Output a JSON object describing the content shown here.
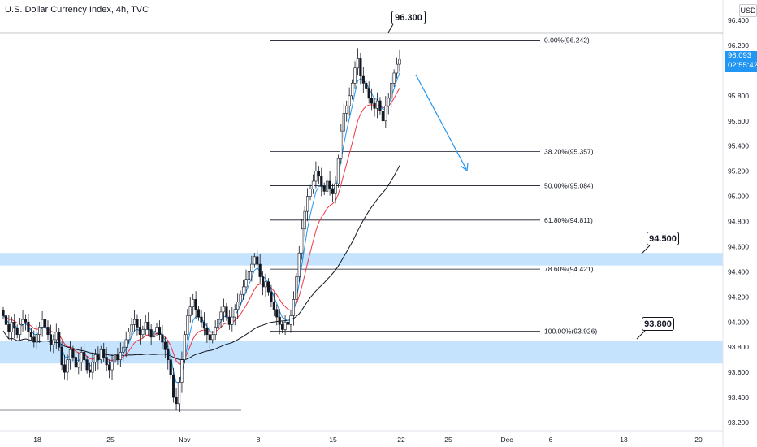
{
  "header": {
    "title": "U.S. Dollar Currency Index, 4h, TVC",
    "currency": "USD"
  },
  "current_price": {
    "value": "96.093",
    "countdown": "02:55:42",
    "color": "#2196f3"
  },
  "callouts": {
    "top": "96.300",
    "resistance": "94.500",
    "support": "93.800"
  },
  "fib_levels": [
    {
      "ratio": "0.00%",
      "price": 96.242,
      "label": "0.00%(96.242)"
    },
    {
      "ratio": "38.20%",
      "price": 95.357,
      "label": "38.20%(95.357)"
    },
    {
      "ratio": "50.00%",
      "price": 95.084,
      "label": "50.00%(95.084)"
    },
    {
      "ratio": "61.80%",
      "price": 94.811,
      "label": "61.80%(94.811)"
    },
    {
      "ratio": "78.60%",
      "price": 94.421,
      "label": "78.60%(94.421)"
    },
    {
      "ratio": "100.00%",
      "price": 93.926,
      "label": "100.00%(93.926)"
    }
  ],
  "price_axis_labels": [
    "96.400",
    "96.200",
    "95.800",
    "95.600",
    "95.400",
    "95.200",
    "95.000",
    "94.800",
    "94.600",
    "94.400",
    "94.200",
    "94.000",
    "93.800",
    "93.600",
    "93.400",
    "93.200"
  ],
  "time_axis_labels": [
    "18",
    "25",
    "Nov",
    "8",
    "15",
    "22",
    "25",
    "Dec",
    "6",
    "13",
    "20"
  ],
  "colors": {
    "zone": "#bbdefb",
    "up_candle": "#ffffff",
    "down_candle": "#131722",
    "ema_fast": "#2196f3",
    "ema_mid": "#f23645",
    "ma_slow": "#131722",
    "arrow": "#2196f3"
  },
  "chart_data": {
    "type": "line",
    "symbol": "U.S. Dollar Currency Index",
    "interval": "4h",
    "ylim": [
      93.15,
      96.5
    ],
    "zones": [
      {
        "low": 94.45,
        "high": 94.55,
        "label": "94.500"
      },
      {
        "low": 93.67,
        "high": 93.85,
        "label": "93.800"
      }
    ],
    "horizontal_lines": [
      96.3,
      93.3
    ],
    "close_series": [
      94.05,
      93.98,
      93.92,
      94.0,
      93.95,
      93.9,
      93.98,
      94.02,
      94.0,
      93.92,
      93.88,
      93.84,
      93.9,
      93.96,
      94.02,
      93.96,
      93.9,
      93.82,
      93.86,
      93.92,
      93.8,
      93.66,
      93.6,
      93.7,
      93.78,
      93.72,
      93.64,
      93.68,
      93.76,
      93.7,
      93.62,
      93.6,
      93.68,
      93.74,
      93.7,
      93.78,
      93.72,
      93.66,
      93.62,
      93.68,
      93.74,
      93.7,
      93.76,
      93.8,
      93.86,
      93.92,
      93.98,
      94.02,
      93.96,
      93.9,
      93.94,
      94.0,
      93.94,
      93.88,
      93.92,
      93.96,
      93.9,
      93.84,
      93.78,
      93.7,
      93.58,
      93.4,
      93.35,
      93.52,
      93.7,
      93.9,
      94.05,
      94.12,
      94.18,
      94.1,
      94.04,
      94.0,
      93.95,
      93.9,
      93.86,
      93.9,
      93.96,
      94.02,
      94.08,
      94.12,
      94.04,
      93.98,
      94.04,
      94.1,
      94.16,
      94.22,
      94.28,
      94.34,
      94.4,
      94.46,
      94.52,
      94.46,
      94.36,
      94.28,
      94.32,
      94.24,
      94.16,
      94.1,
      94.04,
      93.98,
      93.94,
      94.0,
      93.98,
      94.05,
      94.18,
      94.36,
      94.55,
      94.74,
      94.88,
      95.0,
      95.06,
      95.12,
      95.2,
      95.16,
      95.08,
      95.04,
      95.12,
      95.06,
      95.02,
      95.1,
      95.3,
      95.52,
      95.66,
      95.72,
      95.8,
      95.9,
      96.02,
      96.1,
      95.96,
      95.9,
      95.86,
      95.78,
      95.74,
      95.7,
      95.76,
      95.68,
      95.6,
      95.72,
      95.78,
      95.9,
      95.98,
      96.05,
      96.09
    ]
  }
}
